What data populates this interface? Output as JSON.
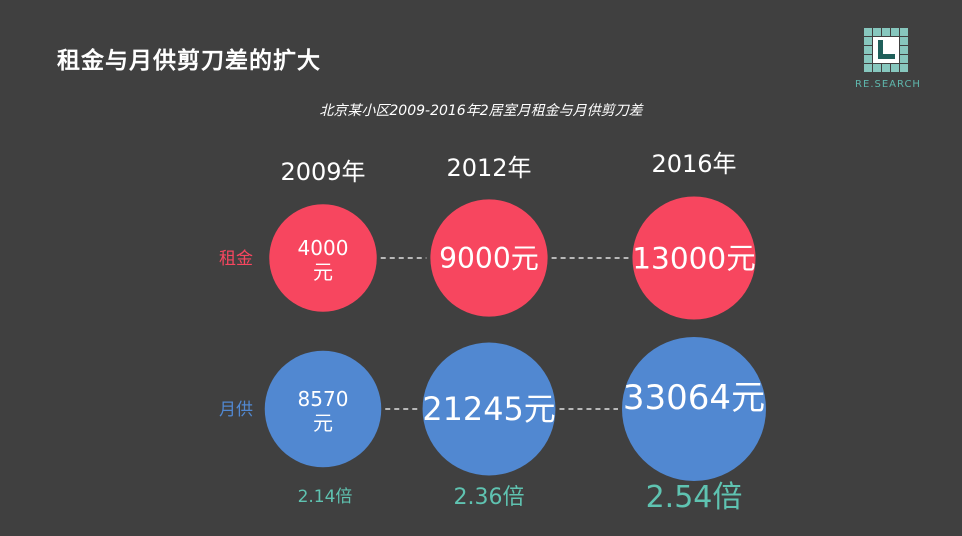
{
  "header": {
    "title": "租金与月供剪刀差的扩大",
    "logo_text": "RE.SEARCH"
  },
  "colors": {
    "background": "#404040",
    "rent": "#f7465f",
    "mortgage": "#5188d1",
    "ratio_text": "#5fc3b1",
    "text": "#ffffff"
  },
  "chart_data": {
    "type": "bubble",
    "title": "北京某小区2009-2016年2居室月租金与月供剪刀差",
    "categories": [
      "2009年",
      "2012年",
      "2016年"
    ],
    "series": [
      {
        "name": "租金",
        "values": [
          4000,
          9000,
          13000
        ],
        "labels": [
          "4000元",
          "9000元",
          "13000元"
        ]
      },
      {
        "name": "月供",
        "values": [
          8570,
          21245,
          33064
        ],
        "labels": [
          "8570元",
          "21245元",
          "33064元"
        ]
      }
    ],
    "ratios": [
      2.14,
      2.36,
      2.54
    ],
    "ratio_labels": [
      "2.14倍",
      "2.36倍",
      "2.54倍"
    ]
  }
}
